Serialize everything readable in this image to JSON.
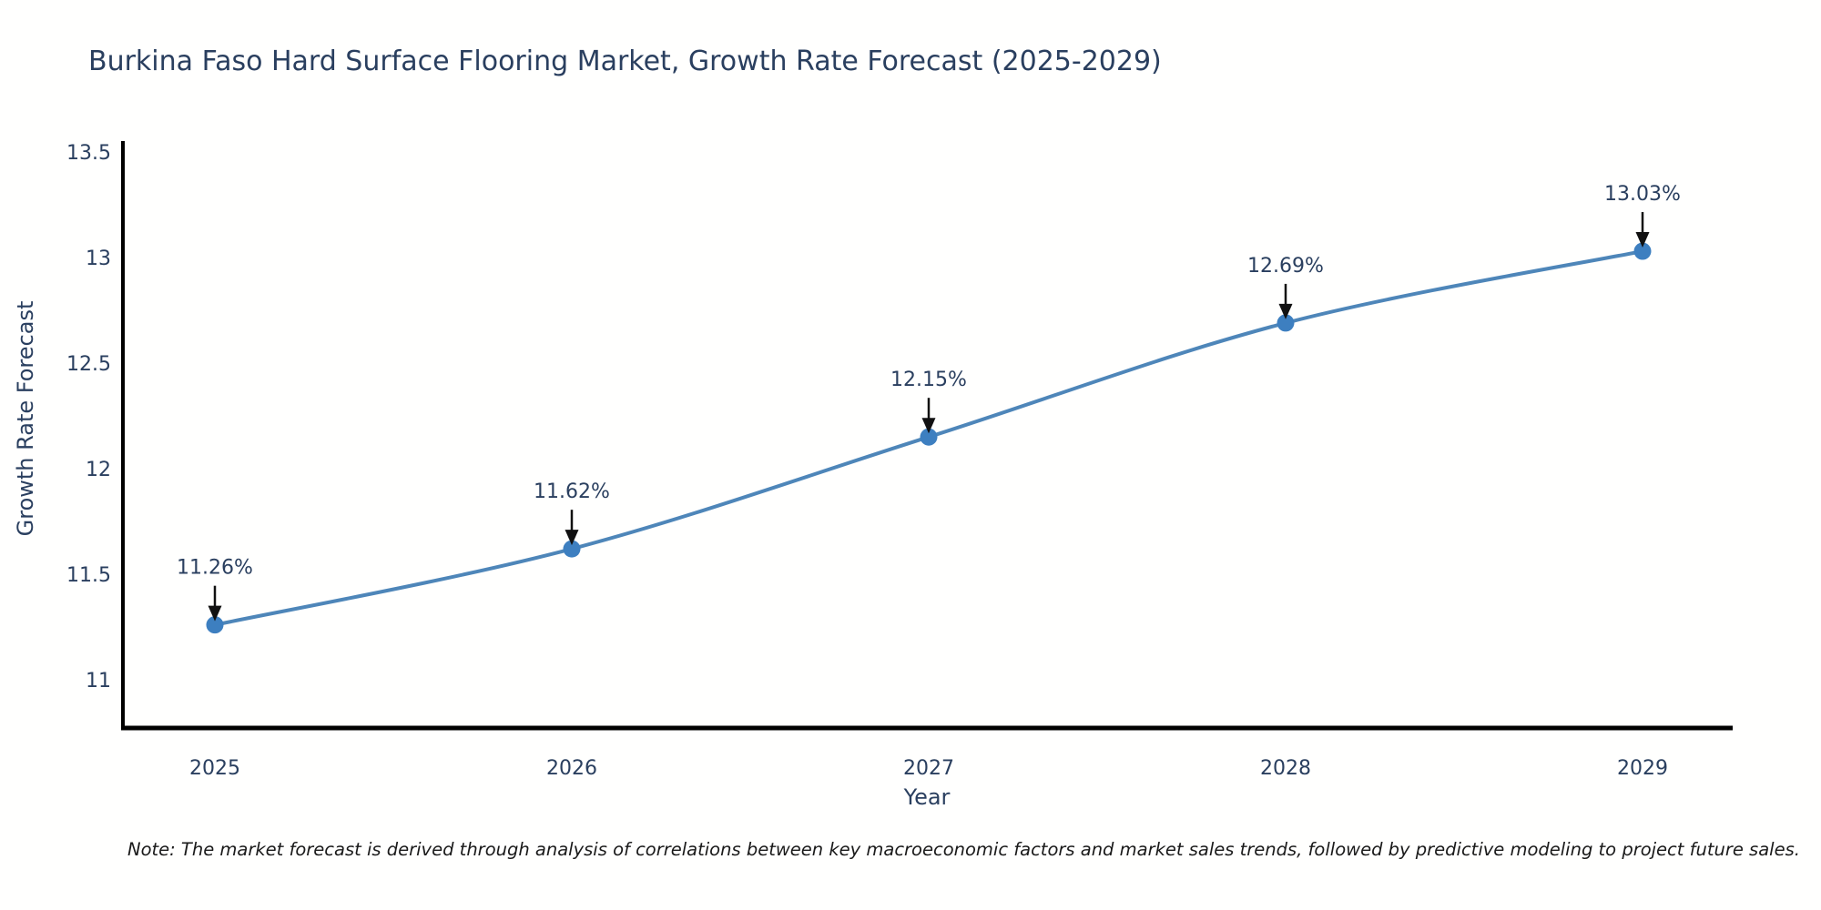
{
  "title": "Burkina Faso Hard Surface Flooring Market, Growth Rate Forecast (2025-2029)",
  "note": "Note: The market forecast is derived through analysis of correlations between key macroeconomic factors and market sales trends, followed by predictive modeling to project future sales.",
  "chart_data": {
    "type": "line",
    "title": "Burkina Faso Hard Surface Flooring Market, Growth Rate Forecast (2025-2029)",
    "xlabel": "Year",
    "ylabel": "Growth Rate Forecast",
    "x": [
      2025,
      2026,
      2027,
      2028,
      2029
    ],
    "values": [
      11.26,
      11.62,
      12.15,
      12.69,
      13.03
    ],
    "labels": [
      "11.26%",
      "11.62%",
      "12.15%",
      "12.69%",
      "13.03%"
    ],
    "yticks": [
      11,
      11.5,
      12,
      12.5,
      13,
      13.5
    ],
    "ylim": [
      10.77,
      13.55
    ],
    "line_shape": "spline",
    "grid": false,
    "legend": "none",
    "annotations": "value labels with down arrows above each point",
    "colors": {
      "line": "#4e86b9",
      "marker": "#3d7fc0",
      "text": "#2a3f5f",
      "axis": "#000000",
      "arrow": "#111111"
    }
  }
}
